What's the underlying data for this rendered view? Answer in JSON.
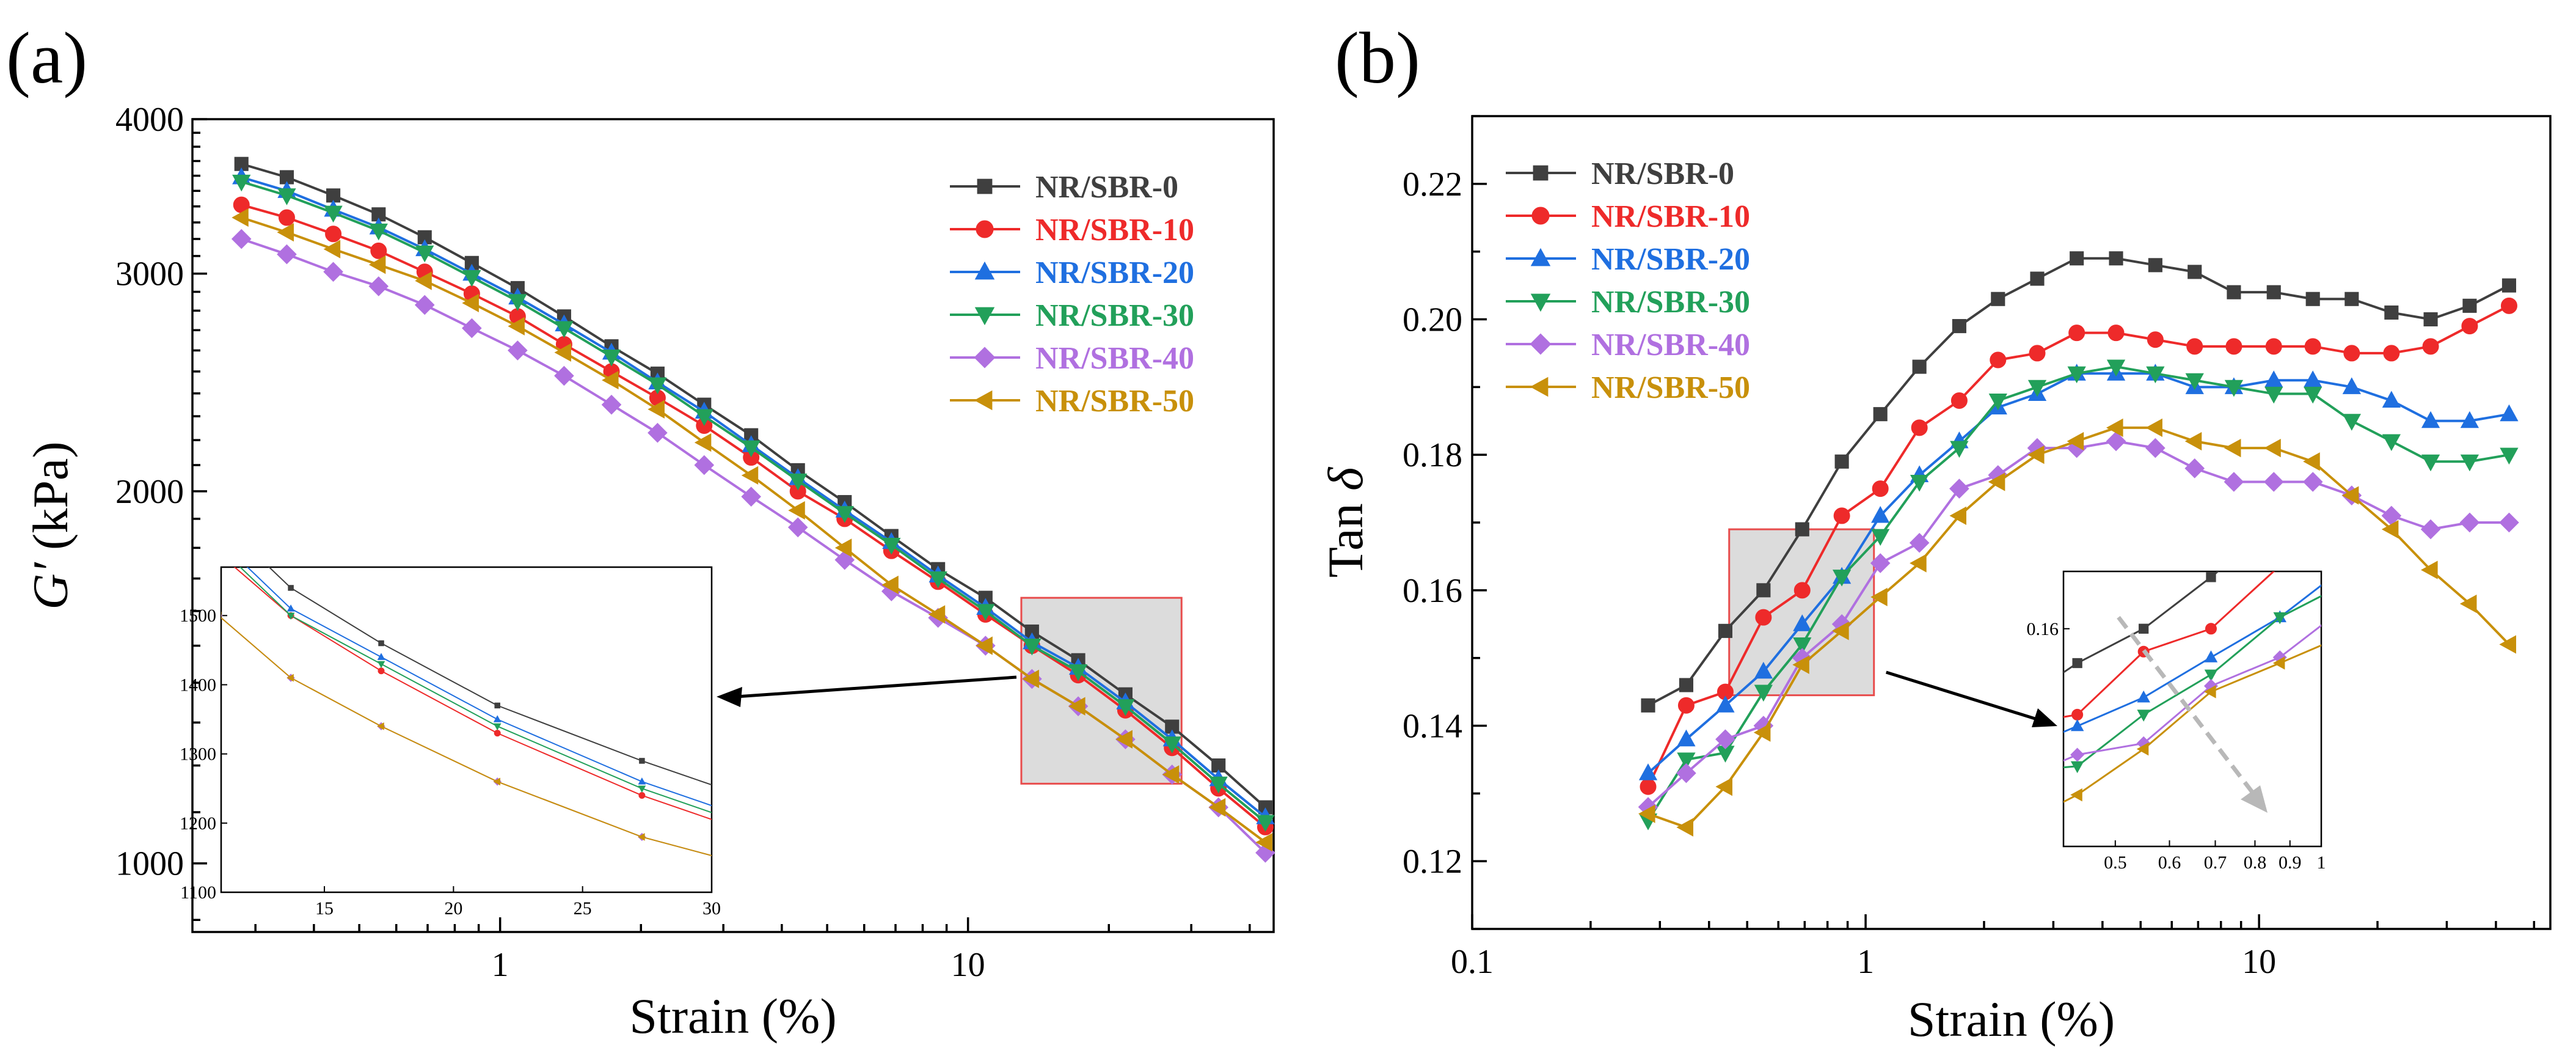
{
  "figure": {
    "panel_a_label": "(a)",
    "panel_b_label": "(b)"
  },
  "chart_data": [
    {
      "type": "line",
      "panel": "a",
      "xscale": "log",
      "yscale": "log",
      "xlabel": "Strain (%)",
      "ylabel_main": "G′",
      "ylabel_unit": " (kPa)",
      "xlim": [
        0.22,
        45
      ],
      "ylim": [
        880,
        4000
      ],
      "xticks": [
        {
          "v": 1,
          "label": "1"
        },
        {
          "v": 10,
          "label": "10"
        }
      ],
      "yticks": [
        {
          "v": 1000,
          "label": "1000"
        },
        {
          "v": 2000,
          "label": "2000"
        },
        {
          "v": 3000,
          "label": "3000"
        },
        {
          "v": 4000,
          "label": "4000"
        }
      ],
      "legend_position": "top-right",
      "x": [
        0.28,
        0.35,
        0.44,
        0.55,
        0.69,
        0.87,
        1.09,
        1.37,
        1.73,
        2.17,
        2.73,
        3.44,
        4.33,
        5.45,
        6.86,
        8.63,
        10.9,
        13.7,
        17.2,
        21.7,
        27.3,
        34.3,
        43.2
      ],
      "series": [
        {
          "name": "NR/SBR-0",
          "color": "#3f3f3f",
          "marker": "square",
          "values": [
            3680,
            3590,
            3470,
            3350,
            3210,
            3060,
            2920,
            2770,
            2620,
            2490,
            2350,
            2220,
            2080,
            1960,
            1840,
            1730,
            1640,
            1540,
            1460,
            1370,
            1290,
            1200,
            1110
          ]
        },
        {
          "name": "NR/SBR-10",
          "color": "#ee2a2a",
          "marker": "circle",
          "values": [
            3410,
            3330,
            3230,
            3130,
            3010,
            2890,
            2770,
            2630,
            2500,
            2380,
            2260,
            2130,
            2000,
            1900,
            1790,
            1690,
            1590,
            1500,
            1420,
            1330,
            1240,
            1150,
            1070
          ]
        },
        {
          "name": "NR/SBR-20",
          "color": "#1f6fe0",
          "marker": "triangle-up",
          "values": [
            3590,
            3500,
            3380,
            3270,
            3140,
            3000,
            2870,
            2730,
            2590,
            2450,
            2320,
            2180,
            2050,
            1930,
            1820,
            1710,
            1610,
            1510,
            1440,
            1350,
            1260,
            1170,
            1090
          ]
        },
        {
          "name": "NR/SBR-30",
          "color": "#22a05a",
          "marker": "triangle-down",
          "values": [
            3560,
            3470,
            3360,
            3250,
            3120,
            2980,
            2850,
            2710,
            2570,
            2440,
            2300,
            2170,
            2040,
            1920,
            1810,
            1700,
            1600,
            1500,
            1430,
            1340,
            1250,
            1160,
            1080
          ]
        },
        {
          "name": "NR/SBR-40",
          "color": "#b070e0",
          "marker": "diamond",
          "values": [
            3200,
            3110,
            3010,
            2930,
            2830,
            2710,
            2600,
            2480,
            2350,
            2230,
            2100,
            1980,
            1870,
            1760,
            1660,
            1580,
            1500,
            1410,
            1340,
            1260,
            1180,
            1110,
            1020
          ]
        },
        {
          "name": "NR/SBR-50",
          "color": "#c8900a",
          "marker": "triangle-left",
          "values": [
            3330,
            3240,
            3140,
            3050,
            2960,
            2840,
            2720,
            2590,
            2460,
            2330,
            2190,
            2060,
            1930,
            1800,
            1680,
            1590,
            1500,
            1410,
            1340,
            1260,
            1180,
            1110,
            1040
          ]
        }
      ],
      "inset": {
        "xlim": [
          11,
          30
        ],
        "ylim": [
          1100,
          1570
        ],
        "xticks": [
          "15",
          "20",
          "25",
          "30"
        ],
        "yticks": [
          "1100",
          "1200",
          "1300",
          "1400",
          "1500"
        ]
      }
    },
    {
      "type": "line",
      "panel": "b",
      "xscale": "log",
      "yscale": "linear",
      "xlabel": "Strain (%)",
      "ylabel_main": "Tan ",
      "ylabel_symbol": "δ",
      "xlim": [
        0.1,
        55
      ],
      "ylim": [
        0.11,
        0.23
      ],
      "xticks": [
        {
          "v": 0.1,
          "label": "0.1"
        },
        {
          "v": 1,
          "label": "1"
        },
        {
          "v": 10,
          "label": "10"
        }
      ],
      "yticks": [
        {
          "v": 0.12,
          "label": "0.12"
        },
        {
          "v": 0.14,
          "label": "0.14"
        },
        {
          "v": 0.16,
          "label": "0.16"
        },
        {
          "v": 0.18,
          "label": "0.18"
        },
        {
          "v": 0.2,
          "label": "0.20"
        },
        {
          "v": 0.22,
          "label": "0.22"
        }
      ],
      "legend_position": "top-left",
      "x": [
        0.28,
        0.35,
        0.44,
        0.55,
        0.69,
        0.87,
        1.09,
        1.37,
        1.73,
        2.17,
        2.73,
        3.44,
        4.33,
        5.45,
        6.86,
        8.63,
        10.9,
        13.7,
        17.2,
        21.7,
        27.3,
        34.3,
        43.2
      ],
      "series": [
        {
          "name": "NR/SBR-0",
          "color": "#3f3f3f",
          "marker": "square",
          "values": [
            0.143,
            0.146,
            0.154,
            0.16,
            0.169,
            0.179,
            0.186,
            0.193,
            0.199,
            0.203,
            0.206,
            0.209,
            0.209,
            0.208,
            0.207,
            0.204,
            0.204,
            0.203,
            0.203,
            0.201,
            0.2,
            0.202,
            0.205
          ]
        },
        {
          "name": "NR/SBR-10",
          "color": "#ee2a2a",
          "marker": "circle",
          "values": [
            0.131,
            0.143,
            0.145,
            0.156,
            0.16,
            0.171,
            0.175,
            0.184,
            0.188,
            0.194,
            0.195,
            0.198,
            0.198,
            0.197,
            0.196,
            0.196,
            0.196,
            0.196,
            0.195,
            0.195,
            0.196,
            0.199,
            0.202
          ]
        },
        {
          "name": "NR/SBR-20",
          "color": "#1f6fe0",
          "marker": "triangle-up",
          "values": [
            0.133,
            0.138,
            0.143,
            0.148,
            0.155,
            0.162,
            0.171,
            0.177,
            0.182,
            0.187,
            0.189,
            0.192,
            0.192,
            0.192,
            0.19,
            0.19,
            0.191,
            0.191,
            0.19,
            0.188,
            0.185,
            0.185,
            0.186
          ]
        },
        {
          "name": "NR/SBR-30",
          "color": "#22a05a",
          "marker": "triangle-down",
          "values": [
            0.126,
            0.135,
            0.136,
            0.145,
            0.152,
            0.162,
            0.168,
            0.176,
            0.181,
            0.188,
            0.19,
            0.192,
            0.193,
            0.192,
            0.191,
            0.19,
            0.189,
            0.189,
            0.185,
            0.182,
            0.179,
            0.179,
            0.18
          ]
        },
        {
          "name": "NR/SBR-40",
          "color": "#b070e0",
          "marker": "diamond",
          "values": [
            0.128,
            0.133,
            0.138,
            0.14,
            0.15,
            0.155,
            0.164,
            0.167,
            0.175,
            0.177,
            0.181,
            0.181,
            0.182,
            0.181,
            0.178,
            0.176,
            0.176,
            0.176,
            0.174,
            0.171,
            0.169,
            0.17,
            0.17
          ]
        },
        {
          "name": "NR/SBR-50",
          "color": "#c8900a",
          "marker": "triangle-left",
          "values": [
            0.127,
            0.125,
            0.131,
            0.139,
            0.149,
            0.154,
            0.159,
            0.164,
            0.171,
            0.176,
            0.18,
            0.182,
            0.184,
            0.184,
            0.182,
            0.181,
            0.181,
            0.179,
            0.174,
            0.169,
            0.163,
            0.158,
            0.152
          ]
        }
      ],
      "inset": {
        "xlim": [
          0.42,
          1.0
        ],
        "ylim": [
          0.122,
          0.17
        ],
        "xticks": [
          "0.5",
          "0.6",
          "0.7",
          "0.8",
          "0.9",
          "1"
        ],
        "yticks": [
          "0.16"
        ]
      }
    }
  ]
}
